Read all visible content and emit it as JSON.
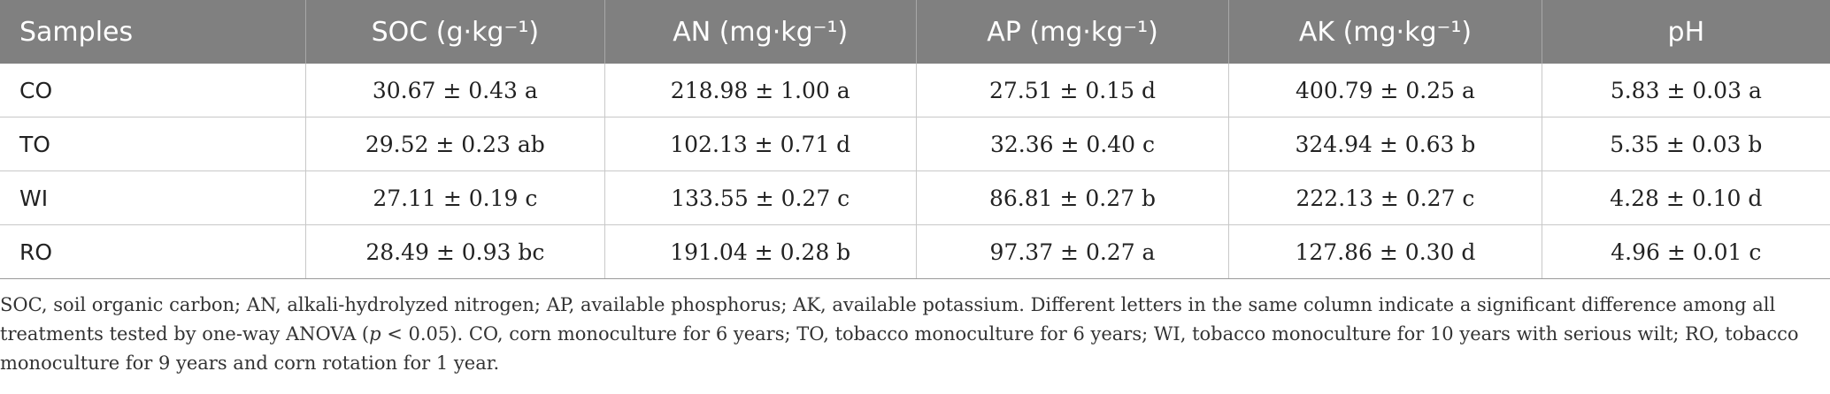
{
  "table": {
    "headers": [
      "Samples",
      "SOC (g·kg⁻¹)",
      "AN (mg·kg⁻¹)",
      "AP (mg·kg⁻¹)",
      "AK (mg·kg⁻¹)",
      "pH"
    ],
    "rows": [
      [
        "CO",
        "30.67 ± 0.43 a",
        "218.98 ± 1.00 a",
        "27.51 ± 0.15 d",
        "400.79 ± 0.25 a",
        "5.83 ± 0.03 a"
      ],
      [
        "TO",
        "29.52 ± 0.23 ab",
        "102.13 ± 0.71 d",
        "32.36 ± 0.40 c",
        "324.94 ± 0.63 b",
        "5.35 ± 0.03 b"
      ],
      [
        "WI",
        "27.11 ± 0.19 c",
        "133.55 ± 0.27 c",
        "86.81 ± 0.27 b",
        "222.13 ± 0.27 c",
        "4.28 ± 0.10 d"
      ],
      [
        "RO",
        "28.49 ± 0.93 bc",
        "191.04 ± 0.28 b",
        "97.37 ± 0.27 a",
        "127.86 ± 0.30 d",
        "4.96 ± 0.01 c"
      ]
    ]
  },
  "footnote": {
    "before_p": "SOC, soil organic carbon; AN, alkali-hydrolyzed nitrogen; AP, available phosphorus; AK, available potassium. Different letters in the same column indicate a significant difference among all treatments tested by one-way ANOVA (",
    "p": "p",
    "after_p": " < 0.05). CO, corn monoculture for 6 years; TO, tobacco monoculture for 6 years; WI, tobacco monoculture for 10 years with serious wilt; RO, tobacco monoculture for 9 years and corn rotation for 1 year."
  },
  "colors": {
    "header_bg": "#808080",
    "header_text": "#ffffff",
    "grid": "#c8c8c8"
  }
}
